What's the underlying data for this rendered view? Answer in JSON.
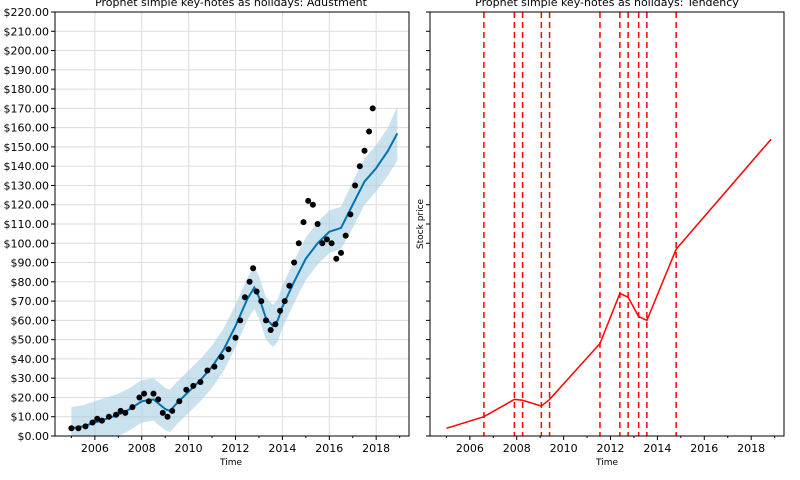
{
  "chart_data": [
    {
      "type": "line",
      "title": "Prophet simple key-notes as holidays: Adustment",
      "xlabel": "Time",
      "ylabel": "",
      "xlim": [
        2004.3,
        2019.4
      ],
      "ylim": [
        0,
        220
      ],
      "grid": true,
      "x_ticks": [
        2006,
        2008,
        2010,
        2012,
        2014,
        2016,
        2018
      ],
      "y_ticks": [
        0,
        10,
        20,
        30,
        40,
        50,
        60,
        70,
        80,
        90,
        100,
        110,
        120,
        130,
        140,
        150,
        160,
        170,
        180,
        190,
        200,
        210,
        220
      ],
      "y_tick_format": "$%.2f",
      "colors": {
        "forecast": "#0072b2",
        "interval": "#a6cee3",
        "observed": "#000000"
      },
      "series": [
        {
          "role": "forecast",
          "x": [
            2005.0,
            2005.5,
            2006.0,
            2006.5,
            2007.0,
            2007.5,
            2008.0,
            2008.5,
            2009.0,
            2009.2,
            2009.5,
            2010.0,
            2010.5,
            2011.0,
            2011.5,
            2012.0,
            2012.5,
            2012.8,
            2013.0,
            2013.3,
            2013.6,
            2013.8,
            2014.0,
            2014.5,
            2015.0,
            2015.5,
            2016.0,
            2016.5,
            2017.0,
            2017.5,
            2018.0,
            2018.5,
            2018.9
          ],
          "y": [
            4,
            5,
            7,
            9,
            11,
            14,
            18,
            19,
            14,
            13,
            17,
            23,
            29,
            36,
            45,
            57,
            71,
            77,
            72,
            61,
            57,
            60,
            67,
            80,
            92,
            100,
            106,
            108,
            120,
            132,
            139,
            148,
            157
          ],
          "lower": [
            -7,
            -6,
            -4,
            -2,
            0,
            3,
            7,
            8,
            3,
            2,
            6,
            12,
            18,
            25,
            34,
            46,
            60,
            66,
            61,
            50,
            46,
            49,
            56,
            69,
            81,
            89,
            95,
            97,
            108,
            120,
            127,
            135,
            143
          ],
          "upper": [
            15,
            16,
            18,
            20,
            22,
            25,
            29,
            30,
            25,
            24,
            28,
            34,
            40,
            47,
            56,
            68,
            82,
            88,
            83,
            72,
            68,
            71,
            78,
            91,
            103,
            111,
            117,
            119,
            132,
            144,
            151,
            160,
            171
          ]
        },
        {
          "role": "observed",
          "x": [
            2005.0,
            2005.3,
            2005.6,
            2005.9,
            2006.1,
            2006.3,
            2006.6,
            2006.9,
            2007.1,
            2007.3,
            2007.6,
            2007.9,
            2008.1,
            2008.3,
            2008.5,
            2008.7,
            2008.9,
            2009.1,
            2009.3,
            2009.6,
            2009.9,
            2010.2,
            2010.5,
            2010.8,
            2011.1,
            2011.4,
            2011.7,
            2012.0,
            2012.2,
            2012.4,
            2012.6,
            2012.75,
            2012.9,
            2013.1,
            2013.3,
            2013.5,
            2013.7,
            2013.9,
            2014.1,
            2014.3,
            2014.5,
            2014.7,
            2014.9,
            2015.1,
            2015.3,
            2015.5,
            2015.7,
            2015.9,
            2016.1,
            2016.3,
            2016.5,
            2016.7,
            2016.9,
            2017.1,
            2017.3,
            2017.5,
            2017.7,
            2017.85
          ],
          "y": [
            4,
            4,
            5,
            7,
            9,
            8,
            10,
            11,
            13,
            12,
            15,
            20,
            22,
            18,
            22,
            19,
            12,
            10,
            13,
            18,
            24,
            26,
            28,
            34,
            36,
            41,
            45,
            51,
            60,
            72,
            80,
            87,
            75,
            70,
            60,
            55,
            58,
            65,
            70,
            78,
            90,
            100,
            111,
            122,
            120,
            110,
            100,
            102,
            100,
            92,
            95,
            104,
            115,
            130,
            140,
            148,
            158,
            170
          ]
        }
      ]
    },
    {
      "type": "line",
      "title": "Prophet simple key-notes as holidays: Tendency",
      "xlabel": "Time",
      "ylabel": "Stock price",
      "xlim": [
        2004.3,
        2019.4
      ],
      "ylim": [
        0,
        220
      ],
      "grid": false,
      "x_ticks": [
        2006,
        2008,
        2010,
        2012,
        2014,
        2016,
        2018
      ],
      "colors": {
        "trend": "#ff0000",
        "changepoint": "#ff0000"
      },
      "series": [
        {
          "role": "trend",
          "x": [
            2005.0,
            2006.6,
            2007.9,
            2008.25,
            2009.05,
            2009.4,
            2011.55,
            2012.4,
            2012.75,
            2013.2,
            2013.55,
            2014.8,
            2018.85
          ],
          "y": [
            4,
            10,
            19,
            18.5,
            15.5,
            19,
            48,
            74,
            72,
            62,
            60,
            97,
            154
          ]
        }
      ],
      "changepoints": [
        2006.6,
        2007.9,
        2008.25,
        2009.05,
        2009.4,
        2011.55,
        2012.4,
        2012.75,
        2013.2,
        2013.55,
        2014.8
      ]
    }
  ]
}
